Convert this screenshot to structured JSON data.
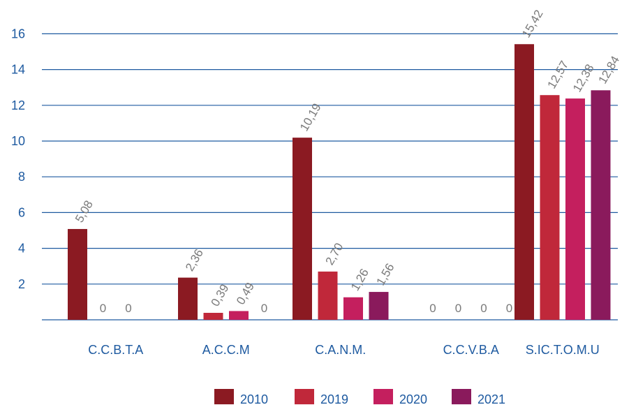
{
  "chart_data": {
    "type": "bar",
    "categories": [
      "C.C.B.T.A",
      "A.C.C.M",
      "C.A.N.M.",
      "C.C.V.B.A",
      "S.IC.T.O.M.U"
    ],
    "series": [
      {
        "name": "2010",
        "color": "#8b1a22",
        "values": [
          5.08,
          2.36,
          10.19,
          0,
          15.42
        ],
        "labels": [
          "5,08",
          "2,36",
          "10,19",
          "0",
          "15,42"
        ]
      },
      {
        "name": "2019",
        "color": "#c0283a",
        "values": [
          0,
          0.39,
          2.7,
          0,
          12.57
        ],
        "labels": [
          "0",
          "0,39",
          "2,70",
          "0",
          "12,57"
        ]
      },
      {
        "name": "2020",
        "color": "#c41f5e",
        "values": [
          0,
          0.49,
          1.26,
          0,
          12.38
        ],
        "labels": [
          "0",
          "0,49",
          "1,26",
          "0",
          "12,38"
        ]
      },
      {
        "name": "2021",
        "color": "#8a1a5c",
        "values": [
          null,
          0,
          1.56,
          0,
          12.84
        ],
        "labels": [
          null,
          "0",
          "1,56",
          "0",
          "12,84"
        ]
      }
    ],
    "yticks": [
      2,
      4,
      6,
      8,
      10,
      12,
      14,
      16
    ],
    "ylim": [
      0,
      16.5
    ],
    "grid": true,
    "legend_position": "bottom-center",
    "grid_color": "#1e5aa0",
    "axis_label_color": "#1e5aa0",
    "data_label_color": "#7a7a7a"
  }
}
